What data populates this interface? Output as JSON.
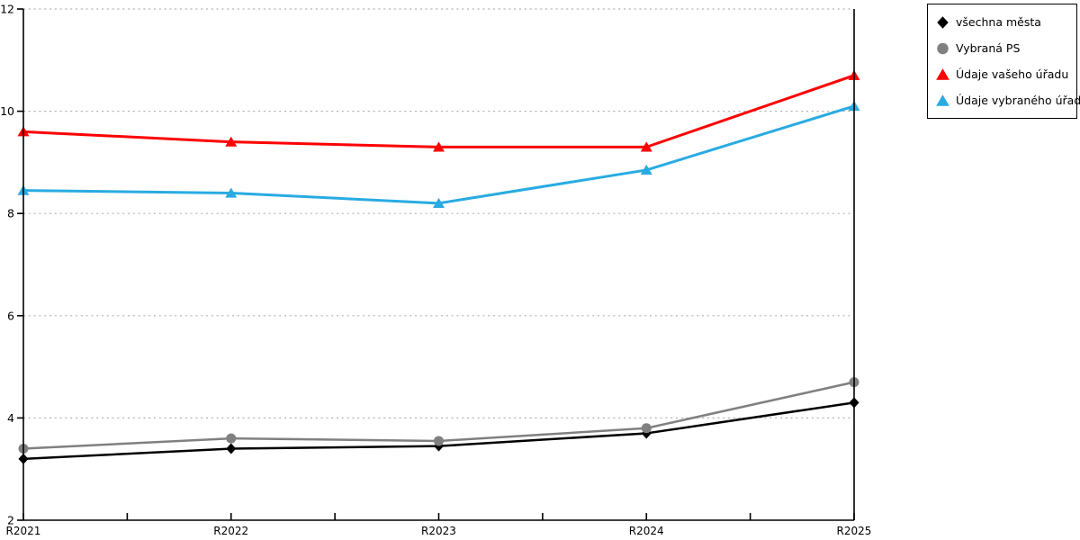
{
  "chart_data": {
    "type": "line",
    "title": "",
    "xlabel": "",
    "ylabel": "",
    "categories": [
      "R2021",
      "R2022",
      "R2023",
      "R2024",
      "R2025"
    ],
    "ylim": [
      2,
      12
    ],
    "y_ticks": [
      2,
      4,
      6,
      8,
      10,
      12
    ],
    "y_gridlines": [
      4,
      6,
      8,
      10,
      12
    ],
    "x_minor_ticks_between_categories": true,
    "grid_style": "dotted",
    "legend_position": "outside-top-right",
    "series": [
      {
        "name": "všechna města",
        "marker": "diamond",
        "color": "#000000",
        "line_width": 2.5,
        "values": [
          3.2,
          3.4,
          3.45,
          3.7,
          4.3
        ]
      },
      {
        "name": "Vybraná PS",
        "marker": "circle",
        "color": "#808080",
        "line_width": 2.5,
        "values": [
          3.4,
          3.6,
          3.55,
          3.8,
          4.7
        ]
      },
      {
        "name": "Údaje vašeho úřadu",
        "marker": "triangle",
        "color": "#ff0000",
        "line_width": 3,
        "values": [
          9.6,
          9.4,
          9.3,
          9.3,
          10.7
        ]
      },
      {
        "name": "Údaje vybraného úřadu",
        "marker": "triangle",
        "color": "#29abe2",
        "line_width": 3,
        "values": [
          8.45,
          8.4,
          8.2,
          8.85,
          10.1
        ]
      }
    ],
    "colors": {
      "axis": "#000000",
      "grid": "#b0b0b0",
      "background": "#ffffff",
      "tick_label": "#000000"
    }
  }
}
